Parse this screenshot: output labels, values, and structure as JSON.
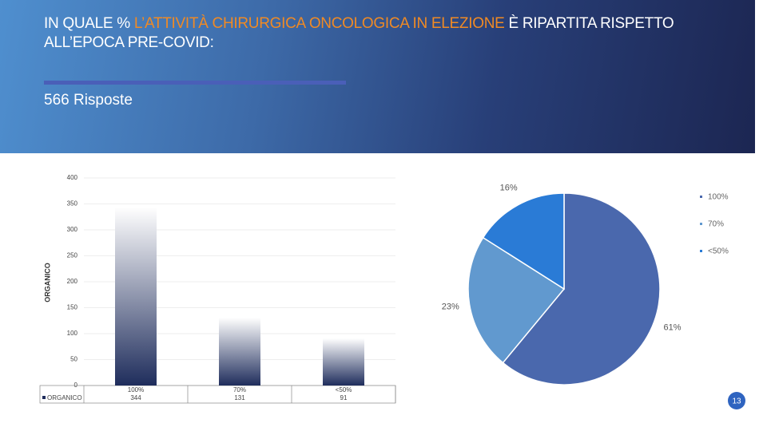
{
  "header": {
    "title_parts": [
      "IN QUALE % ",
      "L’ATTIVITÀ CHIRURGICA ONCOLOGICA IN ELEZIONE",
      " È RIPARTITA RISPETTO ALL’EPOCA PRE-COVID:"
    ],
    "subtitle": "566 Risposte"
  },
  "page_number": "13",
  "chart_data": [
    {
      "type": "bar",
      "ylabel": "ORGANICO",
      "categories": [
        "100%",
        "70%",
        "<50%"
      ],
      "series": [
        {
          "name": "ORGANICO",
          "color": "#1f2d5c",
          "values": [
            344,
            131,
            91
          ]
        }
      ],
      "ylim": [
        0,
        400
      ],
      "yticks": [
        0,
        50,
        100,
        150,
        200,
        250,
        300,
        350,
        400
      ],
      "grid": true
    },
    {
      "type": "pie",
      "categories": [
        "100%",
        "70%",
        "<50%"
      ],
      "values": [
        61,
        23,
        16
      ],
      "value_labels": [
        "61%",
        "23%",
        "16%"
      ],
      "colors": [
        "#4a68ad",
        "#6199cf",
        "#2a7bd6"
      ],
      "legend": "right"
    }
  ]
}
